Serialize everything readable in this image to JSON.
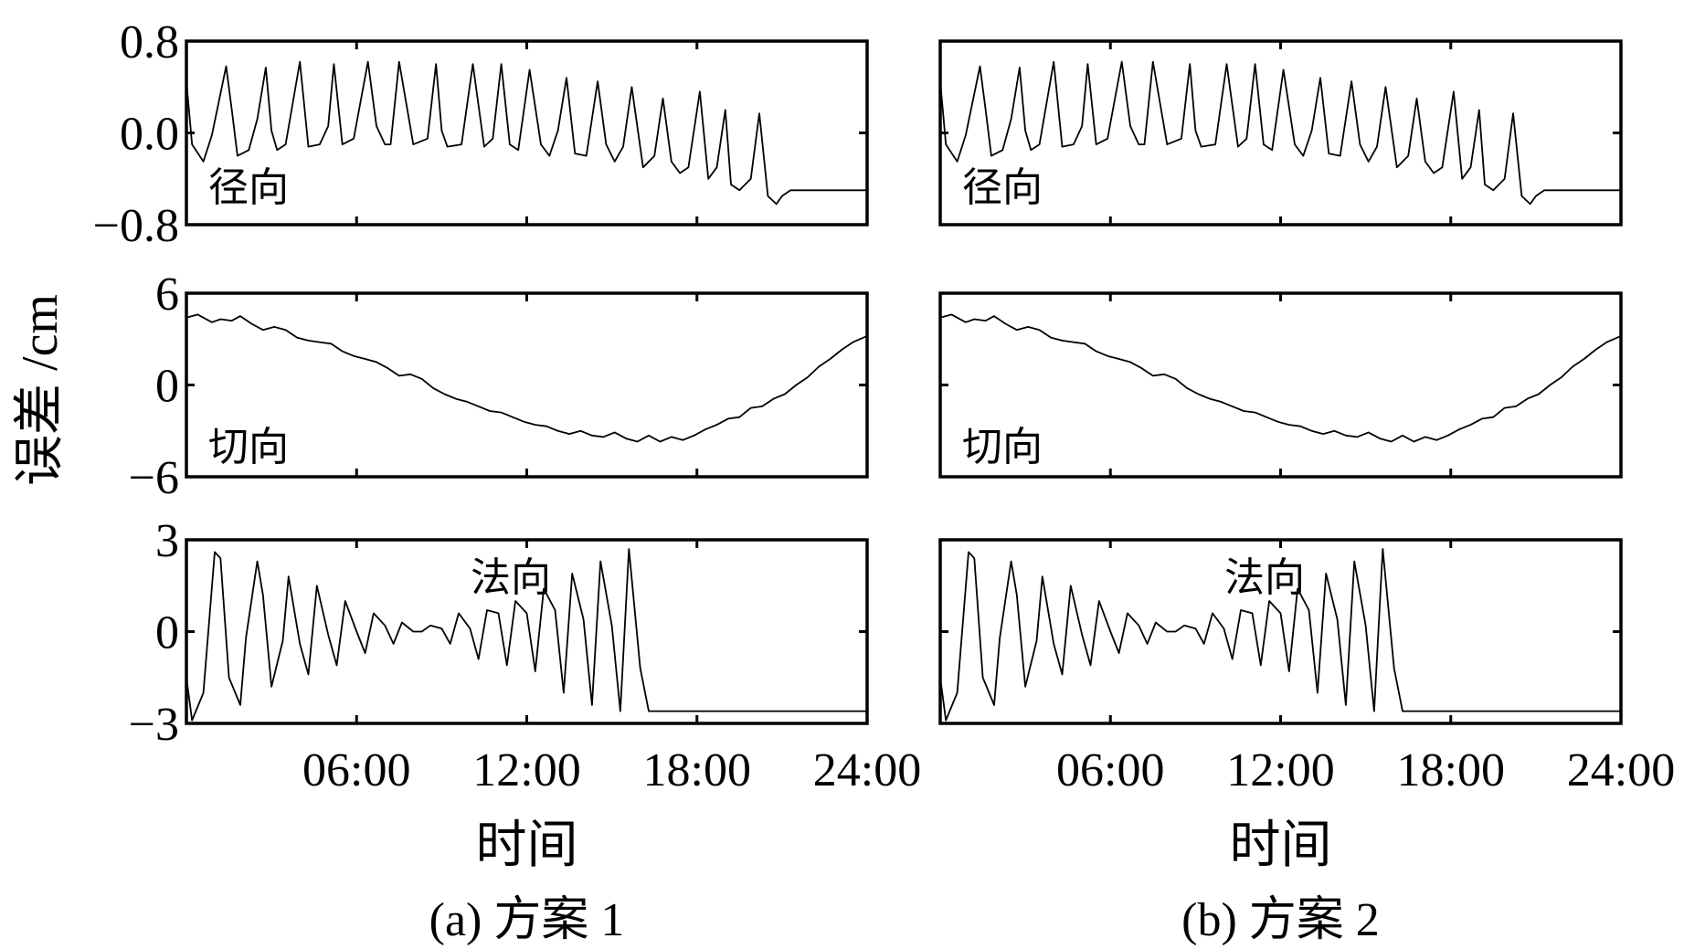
{
  "y_axis_title": "误差 /cm",
  "x_axis_title": "时间",
  "x_tick_labels": [
    "06:00",
    "12:00",
    "18:00",
    "24:00"
  ],
  "x_tick_hours": [
    6,
    12,
    18,
    24
  ],
  "x_range_hours": [
    0,
    24
  ],
  "chart_data": [
    {
      "type": "line",
      "caption": "(a) 方案 1",
      "x_unit": "hours",
      "subplots": [
        {
          "label": "径向",
          "ylim": [
            -0.8,
            0.8
          ],
          "y_tick_labels": [
            "0.8",
            "0.0",
            "−0.8"
          ],
          "y_tick_values": [
            0.8,
            0.0,
            -0.8
          ],
          "x": [
            0,
            0.2,
            0.6,
            0.9,
            1.4,
            1.6,
            1.8,
            2.2,
            2.5,
            2.8,
            3.0,
            3.2,
            3.5,
            4.0,
            4.3,
            4.7,
            5.0,
            5.2,
            5.5,
            5.9,
            6.4,
            6.7,
            7.0,
            7.2,
            7.5,
            8.0,
            8.5,
            8.8,
            9.0,
            9.2,
            9.7,
            10.1,
            10.5,
            10.8,
            11.1,
            11.4,
            11.7,
            12.1,
            12.5,
            12.8,
            13.1,
            13.4,
            13.7,
            14.1,
            14.5,
            14.8,
            15.1,
            15.4,
            15.7,
            16.1,
            16.5,
            16.8,
            17.1,
            17.4,
            17.7,
            18.1,
            18.4,
            18.7,
            19.0,
            19.2,
            19.5,
            19.9,
            20.2,
            20.5,
            20.8,
            21.0,
            21.3,
            21.6,
            21.9,
            22.2,
            22.5,
            22.8,
            23.0,
            23.3,
            23.6,
            23.8,
            24.0
          ],
          "y": [
            0.45,
            -0.1,
            -0.25,
            -0.02,
            0.58,
            0.2,
            -0.2,
            -0.15,
            0.12,
            0.57,
            0.02,
            -0.15,
            -0.1,
            0.62,
            -0.12,
            -0.1,
            0.06,
            0.6,
            -0.1,
            -0.05,
            0.62,
            0.06,
            -0.1,
            -0.1,
            0.62,
            -0.1,
            -0.05,
            0.6,
            0.02,
            -0.12,
            -0.1,
            0.6,
            -0.12,
            -0.05,
            0.6,
            -0.1,
            -0.15,
            0.55,
            -0.1,
            -0.2,
            0.02,
            0.48,
            -0.18,
            -0.2,
            0.45,
            -0.1,
            -0.25,
            -0.12,
            0.4,
            -0.3,
            -0.2,
            0.3,
            -0.25,
            -0.35,
            -0.3,
            0.36,
            -0.4,
            -0.3,
            0.2,
            -0.45,
            -0.5,
            -0.4,
            0.17,
            -0.55,
            -0.62,
            -0.55,
            -0.5,
            -0.5,
            -0.5,
            -0.5,
            -0.5,
            -0.5,
            -0.5,
            -0.5,
            -0.5,
            -0.5,
            -0.5
          ]
        },
        {
          "label": "切向",
          "ylim": [
            -6,
            6
          ],
          "y_tick_labels": [
            "6",
            "0",
            "−6"
          ],
          "y_tick_values": [
            6,
            0,
            -6
          ],
          "x": [
            0,
            0.4,
            0.9,
            1.2,
            1.6,
            1.9,
            2.3,
            2.7,
            3.1,
            3.5,
            3.9,
            4.3,
            4.7,
            5.1,
            5.5,
            5.9,
            6.3,
            6.7,
            7.1,
            7.5,
            7.9,
            8.3,
            8.7,
            9.1,
            9.5,
            9.9,
            10.3,
            10.7,
            11.1,
            11.5,
            11.9,
            12.3,
            12.7,
            13.1,
            13.5,
            13.9,
            14.3,
            14.7,
            15.1,
            15.5,
            15.9,
            16.3,
            16.7,
            17.1,
            17.5,
            17.9,
            18.3,
            18.7,
            19.1,
            19.5,
            19.9,
            20.3,
            20.7,
            21.1,
            21.5,
            21.9,
            22.3,
            22.7,
            23.1,
            23.5,
            24.0
          ],
          "y": [
            4.4,
            4.6,
            4.1,
            4.3,
            4.2,
            4.5,
            4.0,
            3.6,
            3.8,
            3.6,
            3.1,
            2.9,
            2.8,
            2.7,
            2.2,
            1.9,
            1.7,
            1.5,
            1.1,
            0.6,
            0.7,
            0.4,
            -0.2,
            -0.6,
            -0.9,
            -1.1,
            -1.4,
            -1.7,
            -1.8,
            -2.1,
            -2.4,
            -2.6,
            -2.7,
            -3.0,
            -3.2,
            -3.0,
            -3.3,
            -3.4,
            -3.1,
            -3.5,
            -3.7,
            -3.3,
            -3.7,
            -3.4,
            -3.6,
            -3.3,
            -2.9,
            -2.6,
            -2.2,
            -2.1,
            -1.5,
            -1.4,
            -0.9,
            -0.6,
            0.0,
            0.5,
            1.2,
            1.7,
            2.3,
            2.8,
            3.2
          ]
        },
        {
          "label": "法向",
          "ylim": [
            -3,
            3
          ],
          "y_tick_labels": [
            "3",
            "0",
            "−3"
          ],
          "y_tick_values": [
            3,
            0,
            -3
          ],
          "x": [
            0,
            0.2,
            0.6,
            1.0,
            1.2,
            1.5,
            1.9,
            2.1,
            2.5,
            2.7,
            3.0,
            3.4,
            3.6,
            4.0,
            4.3,
            4.6,
            5.0,
            5.3,
            5.6,
            6.0,
            6.3,
            6.6,
            7.0,
            7.3,
            7.6,
            8.0,
            8.3,
            8.6,
            9.0,
            9.3,
            9.6,
            10.0,
            10.3,
            10.6,
            11.0,
            11.3,
            11.6,
            12.0,
            12.3,
            12.6,
            13.0,
            13.3,
            13.6,
            14.0,
            14.3,
            14.6,
            15.0,
            15.3,
            15.6,
            16.0,
            16.3,
            16.6,
            17.0,
            17.3,
            17.6,
            18.0,
            18.3,
            18.6,
            19.0,
            19.3,
            19.6,
            20.0,
            20.3,
            20.6,
            21.0,
            21.3,
            21.6,
            22.0,
            22.3,
            22.6,
            23.0,
            23.3,
            23.6,
            24.0
          ],
          "y": [
            -1.5,
            -2.9,
            -2.0,
            2.6,
            2.4,
            -1.5,
            -2.4,
            -0.2,
            2.3,
            1.2,
            -1.8,
            -0.3,
            1.8,
            -0.4,
            -1.4,
            1.5,
            -0.1,
            -1.1,
            1.0,
            0.0,
            -0.7,
            0.6,
            0.2,
            -0.4,
            0.3,
            0.0,
            0.0,
            0.2,
            0.1,
            -0.4,
            0.6,
            0.1,
            -0.9,
            0.7,
            0.6,
            -1.1,
            1.0,
            0.6,
            -1.3,
            1.4,
            0.7,
            -2.0,
            1.9,
            0.4,
            -2.4,
            2.3,
            0.2,
            -2.6,
            2.7,
            -1.2,
            -2.6,
            -2.6,
            -2.6,
            -2.6,
            -2.6,
            -2.6,
            -2.6,
            -2.6,
            -2.6,
            -2.6,
            -2.6,
            -2.6,
            -2.6,
            -2.6,
            -2.6,
            -2.6,
            -2.6,
            -2.6,
            -2.6,
            -2.6,
            -2.6,
            -2.6,
            -2.6,
            -2.6
          ]
        }
      ]
    },
    {
      "type": "line",
      "caption": "(b) 方案 2",
      "x_unit": "hours",
      "subplots": [
        {
          "label": "径向",
          "ylim": [
            -0.8,
            0.8
          ],
          "y_tick_labels": [],
          "y_tick_values": [
            0.8,
            0.0,
            -0.8
          ],
          "x": [
            0,
            0.2,
            0.6,
            0.9,
            1.4,
            1.6,
            1.8,
            2.2,
            2.5,
            2.8,
            3.0,
            3.2,
            3.5,
            4.0,
            4.3,
            4.7,
            5.0,
            5.2,
            5.5,
            5.9,
            6.4,
            6.7,
            7.0,
            7.2,
            7.5,
            8.0,
            8.5,
            8.8,
            9.0,
            9.2,
            9.7,
            10.1,
            10.5,
            10.8,
            11.1,
            11.4,
            11.7,
            12.1,
            12.5,
            12.8,
            13.1,
            13.4,
            13.7,
            14.1,
            14.5,
            14.8,
            15.1,
            15.4,
            15.7,
            16.1,
            16.5,
            16.8,
            17.1,
            17.4,
            17.7,
            18.1,
            18.4,
            18.7,
            19.0,
            19.2,
            19.5,
            19.9,
            20.2,
            20.5,
            20.8,
            21.0,
            21.3,
            21.6,
            21.9,
            22.2,
            22.5,
            22.8,
            23.0,
            23.3,
            23.6,
            23.8,
            24.0
          ],
          "y": [
            0.45,
            -0.1,
            -0.25,
            -0.02,
            0.58,
            0.2,
            -0.2,
            -0.15,
            0.12,
            0.57,
            0.02,
            -0.15,
            -0.1,
            0.62,
            -0.12,
            -0.1,
            0.06,
            0.6,
            -0.1,
            -0.05,
            0.62,
            0.06,
            -0.1,
            -0.1,
            0.62,
            -0.1,
            -0.05,
            0.6,
            0.02,
            -0.12,
            -0.1,
            0.6,
            -0.12,
            -0.05,
            0.6,
            -0.1,
            -0.15,
            0.55,
            -0.1,
            -0.2,
            0.02,
            0.48,
            -0.18,
            -0.2,
            0.45,
            -0.1,
            -0.25,
            -0.12,
            0.4,
            -0.3,
            -0.2,
            0.3,
            -0.25,
            -0.35,
            -0.3,
            0.36,
            -0.4,
            -0.3,
            0.2,
            -0.45,
            -0.5,
            -0.4,
            0.17,
            -0.55,
            -0.62,
            -0.55,
            -0.5,
            -0.5,
            -0.5,
            -0.5,
            -0.5,
            -0.5,
            -0.5,
            -0.5,
            -0.5,
            -0.5,
            -0.5
          ]
        },
        {
          "label": "切向",
          "ylim": [
            -6,
            6
          ],
          "y_tick_labels": [],
          "y_tick_values": [
            6,
            0,
            -6
          ],
          "x": [
            0,
            0.4,
            0.9,
            1.2,
            1.6,
            1.9,
            2.3,
            2.7,
            3.1,
            3.5,
            3.9,
            4.3,
            4.7,
            5.1,
            5.5,
            5.9,
            6.3,
            6.7,
            7.1,
            7.5,
            7.9,
            8.3,
            8.7,
            9.1,
            9.5,
            9.9,
            10.3,
            10.7,
            11.1,
            11.5,
            11.9,
            12.3,
            12.7,
            13.1,
            13.5,
            13.9,
            14.3,
            14.7,
            15.1,
            15.5,
            15.9,
            16.3,
            16.7,
            17.1,
            17.5,
            17.9,
            18.3,
            18.7,
            19.1,
            19.5,
            19.9,
            20.3,
            20.7,
            21.1,
            21.5,
            21.9,
            22.3,
            22.7,
            23.1,
            23.5,
            24.0
          ],
          "y": [
            4.4,
            4.6,
            4.1,
            4.3,
            4.2,
            4.5,
            4.0,
            3.6,
            3.8,
            3.6,
            3.1,
            2.9,
            2.8,
            2.7,
            2.2,
            1.9,
            1.7,
            1.5,
            1.1,
            0.6,
            0.7,
            0.4,
            -0.2,
            -0.6,
            -0.9,
            -1.1,
            -1.4,
            -1.7,
            -1.8,
            -2.1,
            -2.4,
            -2.6,
            -2.7,
            -3.0,
            -3.2,
            -3.0,
            -3.3,
            -3.4,
            -3.1,
            -3.5,
            -3.7,
            -3.3,
            -3.7,
            -3.4,
            -3.6,
            -3.3,
            -2.9,
            -2.6,
            -2.2,
            -2.1,
            -1.5,
            -1.4,
            -0.9,
            -0.6,
            0.0,
            0.5,
            1.2,
            1.7,
            2.3,
            2.8,
            3.2
          ]
        },
        {
          "label": "法向",
          "ylim": [
            -3,
            3
          ],
          "y_tick_labels": [],
          "y_tick_values": [
            3,
            0,
            -3
          ],
          "x": [
            0,
            0.2,
            0.6,
            1.0,
            1.2,
            1.5,
            1.9,
            2.1,
            2.5,
            2.7,
            3.0,
            3.4,
            3.6,
            4.0,
            4.3,
            4.6,
            5.0,
            5.3,
            5.6,
            6.0,
            6.3,
            6.6,
            7.0,
            7.3,
            7.6,
            8.0,
            8.3,
            8.6,
            9.0,
            9.3,
            9.6,
            10.0,
            10.3,
            10.6,
            11.0,
            11.3,
            11.6,
            12.0,
            12.3,
            12.6,
            13.0,
            13.3,
            13.6,
            14.0,
            14.3,
            14.6,
            15.0,
            15.3,
            15.6,
            16.0,
            16.3,
            16.6,
            17.0,
            17.3,
            17.6,
            18.0,
            18.3,
            18.6,
            19.0,
            19.3,
            19.6,
            20.0,
            20.3,
            20.6,
            21.0,
            21.3,
            21.6,
            22.0,
            22.3,
            22.6,
            23.0,
            23.3,
            23.6,
            24.0
          ],
          "y": [
            -1.5,
            -2.9,
            -2.0,
            2.6,
            2.4,
            -1.5,
            -2.4,
            -0.2,
            2.3,
            1.2,
            -1.8,
            -0.3,
            1.8,
            -0.4,
            -1.4,
            1.5,
            -0.1,
            -1.1,
            1.0,
            0.0,
            -0.7,
            0.6,
            0.2,
            -0.4,
            0.3,
            0.0,
            0.0,
            0.2,
            0.1,
            -0.4,
            0.6,
            0.1,
            -0.9,
            0.7,
            0.6,
            -1.1,
            1.0,
            0.6,
            -1.3,
            1.4,
            0.7,
            -2.0,
            1.9,
            0.4,
            -2.4,
            2.3,
            0.2,
            -2.6,
            2.7,
            -1.2,
            -2.6,
            -2.6,
            -2.6,
            -2.6,
            -2.6,
            -2.6,
            -2.6,
            -2.6,
            -2.6,
            -2.6,
            -2.6,
            -2.6,
            -2.6,
            -2.6,
            -2.6,
            -2.6,
            -2.6,
            -2.6,
            -2.6,
            -2.6,
            -2.6,
            -2.6,
            -2.6,
            -2.6
          ]
        }
      ]
    }
  ]
}
